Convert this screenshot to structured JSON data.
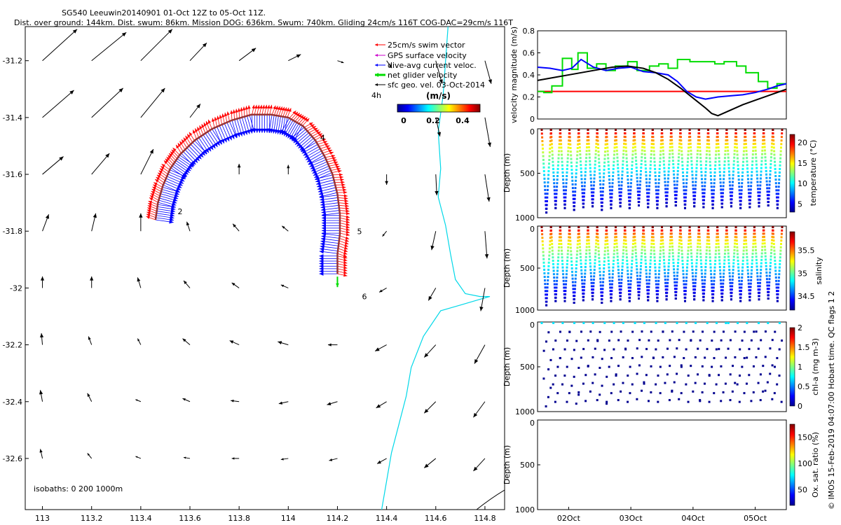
{
  "header": {
    "title": "SG540 Leeuwin20140901 01-Oct 12Z to 05-Oct 11Z.",
    "subtitle": "Dist. over ground: 144km. Dist. swum: 86km. Mission DOG: 636km. Swum: 740km. Gliding 24cm/s 116T COG-DAC=29cm/s 116T"
  },
  "side_note": "© IMOS 15-Feb-2019 04:07:00 Hobart time. QC flags 1  2",
  "colors": {
    "swim": "#ff0000",
    "gps": "#cc00cc",
    "dac": "#0000ff",
    "net": "#00dd00",
    "geo": "#000000",
    "coast": "#00d8e8",
    "isobath_1000": "#000000"
  },
  "chart_data": [
    {
      "type": "map",
      "title": "",
      "xlabel": "",
      "ylabel": "",
      "xlim": [
        112.93,
        114.88
      ],
      "ylim": [
        -32.78,
        -31.08
      ],
      "xticks": [
        "113",
        "113.2",
        "113.4",
        "113.6",
        "113.8",
        "114",
        "114.2",
        "114.4",
        "114.6",
        "114.8"
      ],
      "yticks": [
        "-31.2",
        "-31.4",
        "-31.6",
        "-31.8",
        "-32",
        "-32.2",
        "-32.4",
        "-32.6"
      ],
      "legend": {
        "placement": "top-right",
        "entries": [
          "25cm/s swim vector",
          "GPS surface velocity",
          "dive-avg current veloc.",
          "net glider velocity",
          "sfc geo. vel. 03-Oct-2014"
        ],
        "interval_label": "4h"
      },
      "colorbar": {
        "label": "(m/s)",
        "ticks": [
          "0",
          "0.2",
          "0.4"
        ],
        "range": [
          0,
          0.5
        ]
      },
      "day_markers": [
        {
          "label": "2",
          "lon": 113.56,
          "lat": -31.74
        },
        {
          "label": "4",
          "lon": 114.14,
          "lat": -31.48
        },
        {
          "label": "5",
          "lon": 114.29,
          "lat": -31.81
        },
        {
          "label": "6",
          "lon": 114.31,
          "lat": -32.04
        }
      ],
      "isobath_note": "isobaths: 0   200  1000m",
      "track": [
        [
          113.46,
          -31.76
        ],
        [
          113.47,
          -31.7
        ],
        [
          113.49,
          -31.64
        ],
        [
          113.52,
          -31.58
        ],
        [
          113.56,
          -31.53
        ],
        [
          113.62,
          -31.48
        ],
        [
          113.69,
          -31.44
        ],
        [
          113.77,
          -31.41
        ],
        [
          113.85,
          -31.39
        ],
        [
          113.93,
          -31.39
        ],
        [
          114.0,
          -31.4
        ],
        [
          114.06,
          -31.43
        ],
        [
          114.11,
          -31.48
        ],
        [
          114.15,
          -31.54
        ],
        [
          114.18,
          -31.6
        ],
        [
          114.2,
          -31.67
        ],
        [
          114.21,
          -31.74
        ],
        [
          114.21,
          -31.81
        ],
        [
          114.2,
          -31.88
        ],
        [
          114.2,
          -31.95
        ]
      ],
      "dac_vector": {
        "u": -0.3,
        "v": 0.1
      },
      "swim_vector": {
        "u": 0.18,
        "v": -0.12
      },
      "net_vector": {
        "lon": 114.2,
        "lat": -31.96,
        "u": 0.0,
        "v": -0.2
      },
      "geo_vectors": [
        {
          "lon": 113,
          "lat": -31.2,
          "u": 0.33,
          "v": 0.3
        },
        {
          "lon": 113.2,
          "lat": -31.2,
          "u": 0.33,
          "v": 0.27
        },
        {
          "lon": 113.4,
          "lat": -31.2,
          "u": 0.3,
          "v": 0.3
        },
        {
          "lon": 113.6,
          "lat": -31.2,
          "u": 0.16,
          "v": 0.17
        },
        {
          "lon": 113.8,
          "lat": -31.2,
          "u": 0.16,
          "v": 0.12
        },
        {
          "lon": 114,
          "lat": -31.2,
          "u": 0.12,
          "v": 0.06
        },
        {
          "lon": 114.2,
          "lat": -31.2,
          "u": 0.06,
          "v": -0.02
        },
        {
          "lon": 114.4,
          "lat": -31.2,
          "u": 0.05,
          "v": -0.07
        },
        {
          "lon": 114.6,
          "lat": -31.2,
          "u": 0.06,
          "v": -0.22
        },
        {
          "lon": 114.8,
          "lat": -31.2,
          "u": 0.06,
          "v": -0.22
        },
        {
          "lon": 113,
          "lat": -31.4,
          "u": 0.3,
          "v": 0.26
        },
        {
          "lon": 113.2,
          "lat": -31.4,
          "u": 0.3,
          "v": 0.28
        },
        {
          "lon": 113.4,
          "lat": -31.4,
          "u": 0.23,
          "v": 0.28
        },
        {
          "lon": 113.6,
          "lat": -31.4,
          "u": 0.1,
          "v": 0.13
        },
        {
          "lon": 114.6,
          "lat": -31.4,
          "u": 0.04,
          "v": -0.18
        },
        {
          "lon": 114.8,
          "lat": -31.4,
          "u": 0.05,
          "v": -0.28
        },
        {
          "lon": 113,
          "lat": -31.6,
          "u": 0.2,
          "v": 0.17
        },
        {
          "lon": 113.2,
          "lat": -31.6,
          "u": 0.17,
          "v": 0.2
        },
        {
          "lon": 113.4,
          "lat": -31.6,
          "u": 0.12,
          "v": 0.24
        },
        {
          "lon": 113.8,
          "lat": -31.6,
          "u": 0.0,
          "v": 0.1
        },
        {
          "lon": 114,
          "lat": -31.6,
          "u": 0.0,
          "v": 0.09
        },
        {
          "lon": 114.4,
          "lat": -31.6,
          "u": 0.0,
          "v": -0.1
        },
        {
          "lon": 114.6,
          "lat": -31.6,
          "u": 0.01,
          "v": -0.2
        },
        {
          "lon": 114.8,
          "lat": -31.6,
          "u": 0.04,
          "v": -0.26
        },
        {
          "lon": 113,
          "lat": -31.8,
          "u": 0.06,
          "v": 0.16
        },
        {
          "lon": 113.2,
          "lat": -31.8,
          "u": 0.04,
          "v": 0.17
        },
        {
          "lon": 113.4,
          "lat": -31.8,
          "u": 0.0,
          "v": 0.17
        },
        {
          "lon": 113.6,
          "lat": -31.8,
          "u": -0.03,
          "v": 0.09
        },
        {
          "lon": 113.8,
          "lat": -31.8,
          "u": -0.06,
          "v": 0.07
        },
        {
          "lon": 114,
          "lat": -31.8,
          "u": -0.06,
          "v": 0.05
        },
        {
          "lon": 114.4,
          "lat": -31.8,
          "u": -0.04,
          "v": -0.05
        },
        {
          "lon": 114.6,
          "lat": -31.8,
          "u": -0.04,
          "v": -0.18
        },
        {
          "lon": 114.8,
          "lat": -31.8,
          "u": 0.02,
          "v": -0.26
        },
        {
          "lon": 113,
          "lat": -32.0,
          "u": 0.0,
          "v": 0.11
        },
        {
          "lon": 113.2,
          "lat": -32.0,
          "u": 0.0,
          "v": 0.11
        },
        {
          "lon": 113.4,
          "lat": -32.0,
          "u": -0.03,
          "v": 0.1
        },
        {
          "lon": 113.6,
          "lat": -32.0,
          "u": -0.06,
          "v": 0.07
        },
        {
          "lon": 113.8,
          "lat": -32.0,
          "u": -0.07,
          "v": 0.05
        },
        {
          "lon": 114,
          "lat": -32.0,
          "u": -0.07,
          "v": 0.03
        },
        {
          "lon": 114.4,
          "lat": -32.0,
          "u": -0.07,
          "v": -0.04
        },
        {
          "lon": 114.6,
          "lat": -32.0,
          "u": -0.07,
          "v": -0.12
        },
        {
          "lon": 114.8,
          "lat": -32.0,
          "u": -0.04,
          "v": -0.22
        },
        {
          "lon": 113,
          "lat": -32.2,
          "u": -0.01,
          "v": 0.11
        },
        {
          "lon": 113.2,
          "lat": -32.2,
          "u": -0.03,
          "v": 0.08
        },
        {
          "lon": 113.4,
          "lat": -32.2,
          "u": -0.03,
          "v": 0.06
        },
        {
          "lon": 113.6,
          "lat": -32.2,
          "u": -0.07,
          "v": 0.06
        },
        {
          "lon": 113.8,
          "lat": -32.2,
          "u": -0.09,
          "v": 0.04
        },
        {
          "lon": 114,
          "lat": -32.2,
          "u": -0.1,
          "v": 0.03
        },
        {
          "lon": 114.2,
          "lat": -32.2,
          "u": -0.09,
          "v": 0.0
        },
        {
          "lon": 114.4,
          "lat": -32.2,
          "u": -0.11,
          "v": -0.06
        },
        {
          "lon": 114.6,
          "lat": -32.2,
          "u": -0.11,
          "v": -0.12
        },
        {
          "lon": 114.8,
          "lat": -32.2,
          "u": -0.1,
          "v": -0.18
        },
        {
          "lon": 113,
          "lat": -32.4,
          "u": -0.02,
          "v": 0.11
        },
        {
          "lon": 113.2,
          "lat": -32.4,
          "u": -0.04,
          "v": 0.08
        },
        {
          "lon": 113.4,
          "lat": -32.4,
          "u": -0.05,
          "v": 0.02
        },
        {
          "lon": 113.6,
          "lat": -32.4,
          "u": -0.07,
          "v": 0.03
        },
        {
          "lon": 113.8,
          "lat": -32.4,
          "u": -0.08,
          "v": 0.01
        },
        {
          "lon": 114,
          "lat": -32.4,
          "u": -0.09,
          "v": -0.02
        },
        {
          "lon": 114.2,
          "lat": -32.4,
          "u": -0.1,
          "v": -0.03
        },
        {
          "lon": 114.4,
          "lat": -32.4,
          "u": -0.1,
          "v": -0.06
        },
        {
          "lon": 114.6,
          "lat": -32.4,
          "u": -0.11,
          "v": -0.11
        },
        {
          "lon": 114.8,
          "lat": -32.4,
          "u": -0.11,
          "v": -0.15
        },
        {
          "lon": 113,
          "lat": -32.6,
          "u": -0.02,
          "v": 0.09
        },
        {
          "lon": 113.2,
          "lat": -32.6,
          "u": -0.04,
          "v": 0.05
        },
        {
          "lon": 113.4,
          "lat": -32.6,
          "u": -0.05,
          "v": 0.02
        },
        {
          "lon": 113.6,
          "lat": -32.6,
          "u": -0.06,
          "v": 0.01
        },
        {
          "lon": 113.8,
          "lat": -32.6,
          "u": -0.07,
          "v": 0.0
        },
        {
          "lon": 114,
          "lat": -32.6,
          "u": -0.07,
          "v": -0.01
        },
        {
          "lon": 114.2,
          "lat": -32.6,
          "u": -0.08,
          "v": -0.02
        },
        {
          "lon": 114.4,
          "lat": -32.6,
          "u": -0.09,
          "v": -0.05
        },
        {
          "lon": 114.6,
          "lat": -32.6,
          "u": -0.11,
          "v": -0.09
        },
        {
          "lon": 114.8,
          "lat": -32.6,
          "u": -0.11,
          "v": -0.12
        }
      ],
      "coast_200m": [
        [
          114.65,
          -31.08
        ],
        [
          114.64,
          -31.2
        ],
        [
          114.63,
          -31.32
        ],
        [
          114.61,
          -31.45
        ],
        [
          114.62,
          -31.58
        ],
        [
          114.61,
          -31.68
        ],
        [
          114.64,
          -31.78
        ],
        [
          114.66,
          -31.88
        ],
        [
          114.68,
          -31.97
        ],
        [
          114.72,
          -32.02
        ],
        [
          114.78,
          -32.03
        ],
        [
          114.82,
          -32.03
        ],
        [
          114.78,
          -32.04
        ],
        [
          114.7,
          -32.06
        ],
        [
          114.62,
          -32.08
        ],
        [
          114.55,
          -32.17
        ],
        [
          114.5,
          -32.28
        ],
        [
          114.48,
          -32.38
        ],
        [
          114.45,
          -32.48
        ],
        [
          114.42,
          -32.58
        ],
        [
          114.4,
          -32.68
        ],
        [
          114.38,
          -32.78
        ]
      ]
    },
    {
      "type": "line",
      "title": "",
      "xlabel": "",
      "ylabel": "velocity magnitude (m/s)",
      "ylim": [
        0,
        0.8
      ],
      "xlim": [
        1.5,
        5.5
      ],
      "yticks": [
        "0",
        "0.2",
        "0.4",
        "0.6",
        "0.8"
      ],
      "series": [
        {
          "color": "#ff0000",
          "x": [
            1.5,
            5.5
          ],
          "values": [
            0.25,
            0.25
          ]
        },
        {
          "color": "#00dd00",
          "step": true,
          "x": [
            1.5,
            1.6,
            1.73,
            1.9,
            2.05,
            2.15,
            2.3,
            2.45,
            2.6,
            2.75,
            2.95,
            3.1,
            3.3,
            3.45,
            3.6,
            3.75,
            3.95,
            4.15,
            4.35,
            4.5,
            4.7,
            4.85,
            5.05,
            5.2,
            5.35,
            5.5
          ],
          "values": [
            0.25,
            0.24,
            0.3,
            0.55,
            0.45,
            0.6,
            0.46,
            0.5,
            0.44,
            0.48,
            0.52,
            0.44,
            0.48,
            0.5,
            0.46,
            0.54,
            0.52,
            0.52,
            0.5,
            0.52,
            0.48,
            0.42,
            0.34,
            0.28,
            0.32,
            0.32
          ]
        },
        {
          "color": "#0000ff",
          "x": [
            1.5,
            1.7,
            1.9,
            2.05,
            2.2,
            2.4,
            2.6,
            2.8,
            3.0,
            3.2,
            3.4,
            3.6,
            3.75,
            3.9,
            4.05,
            4.2,
            4.4,
            4.6,
            4.8,
            5.0,
            5.2,
            5.35,
            5.5
          ],
          "values": [
            0.47,
            0.46,
            0.44,
            0.46,
            0.54,
            0.47,
            0.44,
            0.46,
            0.47,
            0.43,
            0.42,
            0.4,
            0.34,
            0.25,
            0.2,
            0.18,
            0.2,
            0.21,
            0.22,
            0.24,
            0.27,
            0.3,
            0.32
          ]
        },
        {
          "color": "#000000",
          "x": [
            1.5,
            1.8,
            2.1,
            2.4,
            2.7,
            2.95,
            3.2,
            3.4,
            3.6,
            3.8,
            4.0,
            4.2,
            4.3,
            4.4,
            4.6,
            4.8,
            5.0,
            5.2,
            5.4,
            5.5
          ],
          "values": [
            0.35,
            0.38,
            0.41,
            0.44,
            0.47,
            0.48,
            0.46,
            0.42,
            0.36,
            0.28,
            0.19,
            0.1,
            0.05,
            0.03,
            0.08,
            0.13,
            0.17,
            0.21,
            0.25,
            0.27
          ]
        }
      ]
    },
    {
      "type": "scatter",
      "ylabel": "Depth (m)",
      "ylim": [
        1000,
        0
      ],
      "xlim": [
        1.5,
        5.5
      ],
      "colorbar": {
        "label": "temperature (°C)",
        "ticks": [
          "5",
          "10",
          "15",
          "20"
        ],
        "range": [
          3,
          22
        ]
      },
      "yticks": [
        "0",
        "500",
        "1000"
      ],
      "dive_count": 26,
      "max_depth": [
        930,
        880,
        880,
        900,
        870,
        860,
        900,
        880,
        860,
        880,
        850,
        870,
        880,
        860,
        850,
        880,
        860,
        870,
        880,
        870,
        860,
        880,
        870,
        860,
        850,
        880
      ]
    },
    {
      "type": "scatter",
      "ylabel": "Depth (m)",
      "ylim": [
        1000,
        0
      ],
      "xlim": [
        1.5,
        5.5
      ],
      "colorbar": {
        "label": "salinity",
        "ticks": [
          "34.5",
          "35",
          "35.5"
        ],
        "range": [
          34.2,
          35.9
        ]
      },
      "yticks": [
        "0",
        "500",
        "1000"
      ],
      "dive_count": 26,
      "max_depth": [
        930,
        880,
        880,
        900,
        870,
        860,
        900,
        880,
        860,
        880,
        850,
        870,
        880,
        860,
        850,
        880,
        860,
        870,
        880,
        870,
        860,
        880,
        870,
        860,
        850,
        880
      ]
    },
    {
      "type": "scatter",
      "ylabel": "Depth (m)",
      "ylim": [
        1000,
        0
      ],
      "xlim": [
        1.5,
        5.5
      ],
      "colorbar": {
        "label": "chl-a (mg m-3)",
        "ticks": [
          "0",
          "0.5",
          "1",
          "1.5",
          "2"
        ],
        "range": [
          0,
          2
        ]
      },
      "yticks": [
        "0",
        "500",
        "1000"
      ],
      "dive_count": 26,
      "max_depth": [
        930,
        880,
        880,
        900,
        870,
        860,
        900,
        880,
        860,
        880,
        850,
        870,
        880,
        860,
        850,
        880,
        860,
        870,
        880,
        870,
        860,
        880,
        870,
        860,
        850,
        880
      ]
    },
    {
      "type": "scatter",
      "ylabel": "Depth (m)",
      "ylim": [
        1000,
        0
      ],
      "xlim": [
        1.5,
        5.5
      ],
      "colorbar": {
        "label": "Ox. sat. ratio (%)",
        "ticks": [
          "50",
          "100",
          "150"
        ],
        "range": [
          20,
          175
        ]
      },
      "yticks": [
        "0",
        "500",
        "1000"
      ],
      "xticks": [
        "02Oct",
        "03Oct",
        "04Oct",
        "05Oct"
      ]
    }
  ]
}
